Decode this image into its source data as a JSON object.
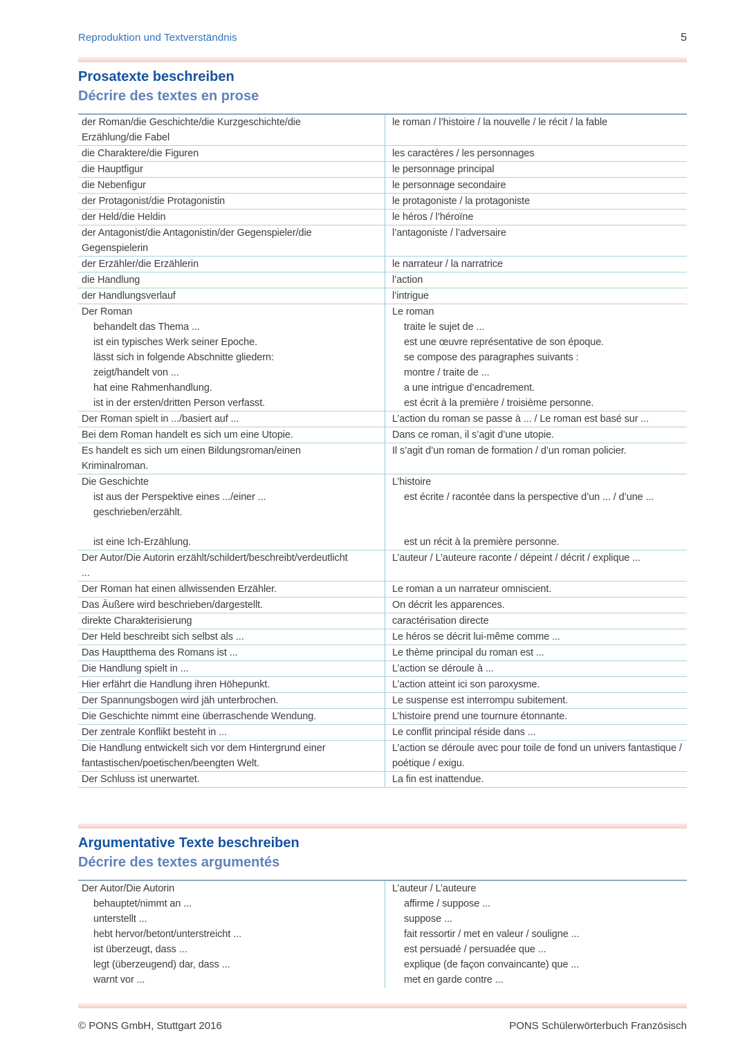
{
  "header": {
    "title": "Reproduktion und Textverständnis",
    "page_number": "5"
  },
  "footer": {
    "copyright": "© PONS GmbH, Stuttgart 2016",
    "edition": "PONS Schülerwörterbuch Französisch"
  },
  "colors": {
    "heading_blue": "#1553a1",
    "subtitle_blue": "#6081be",
    "running_head_blue": "#2e74b9",
    "pink_bar": "#f2c9c3",
    "table_line": "#aed0e0",
    "table_top_border": "#8fa9b8",
    "body_text": "#3d3d3d"
  },
  "sections": [
    {
      "title_de": "Prosatexte beschreiben",
      "title_fr": "Décrire des textes en prose",
      "rows": [
        {
          "de": "der Roman/die Geschichte/die Kurzgeschichte/die Erzählung/die Fabel",
          "fr": "le roman / l’histoire / la nouvelle / le récit / la fable"
        },
        {
          "de": "die Charaktere/die Figuren",
          "fr": "les caractères / les personnages"
        },
        {
          "de": "die Hauptfigur",
          "fr": "le personnage principal"
        },
        {
          "de": "die Nebenfigur",
          "fr": "le personnage secondaire"
        },
        {
          "de": "der Protagonist/die Protagonistin",
          "fr": "le protagoniste / la protagoniste"
        },
        {
          "de": "der Held/die Heldin",
          "fr": "le héros / l’héroïne"
        },
        {
          "de": "der Antagonist/die Antagonistin/der Gegenspieler/die Gegenspielerin",
          "fr": "l’antagoniste / l’adversaire"
        },
        {
          "de": "der Erzähler/die Erzählerin",
          "fr": "le narrateur / la narratrice"
        },
        {
          "de": "die Handlung",
          "fr": "l’action"
        },
        {
          "de": "der Handlungsverlauf",
          "fr": "l’intrigue"
        },
        {
          "head": {
            "de": "Der Roman",
            "fr": "Le roman"
          },
          "items": [
            {
              "de": "behandelt das Thema ...",
              "fr": "traite le sujet de ..."
            },
            {
              "de": "ist ein typisches Werk seiner Epoche.",
              "fr": "est une œuvre représentative de son époque."
            },
            {
              "de": "lässt sich in folgende Abschnitte gliedern:",
              "fr": "se compose des paragraphes suivants :"
            },
            {
              "de": "zeigt/handelt von ...",
              "fr": "montre / traite de ..."
            },
            {
              "de": "hat eine Rahmenhandlung.",
              "fr": "a une intrigue d’encadrement."
            },
            {
              "de": "ist in der ersten/dritten Person verfasst.",
              "fr": "est écrit à la première / troisième personne."
            }
          ]
        },
        {
          "de": "Der Roman spielt in .../basiert auf ...",
          "fr": "L’action du roman se passe à ... / Le roman est basé sur ..."
        },
        {
          "de": "Bei dem Roman handelt es sich um eine Utopie.",
          "fr": "Dans ce roman, il s’agit d’une utopie."
        },
        {
          "de": "Es handelt es sich um einen Bildungsroman/einen Kriminalroman.",
          "fr": "Il s’agit d’un roman de formation / d’un roman policier."
        },
        {
          "head": {
            "de": "Die Geschichte",
            "fr": "L’histoire"
          },
          "items": [
            {
              "de": "ist aus der Perspektive eines .../einer ... geschrieben/erzählt.",
              "fr": "est écrite / racontée dans la perspective d’un ... / d’une ...",
              "gap_after": true
            },
            {
              "de": "ist eine Ich-Erzählung.",
              "fr": "est un récit à la première personne."
            }
          ]
        },
        {
          "de": "Der Autor/Die Autorin erzählt/schildert/beschreibt/verdeutlicht ...",
          "fr": "L’auteur / L’auteure raconte / dépeint / décrit / explique ..."
        },
        {
          "de": "Der Roman hat einen allwissenden Erzähler.",
          "fr": "Le roman a un narrateur omniscient."
        },
        {
          "de": "Das Äußere wird beschrieben/dargestellt.",
          "fr": "On décrit les apparences."
        },
        {
          "de": "direkte Charakterisierung",
          "fr": "caractérisation directe"
        },
        {
          "de": "Der Held beschreibt sich selbst als ...",
          "fr": "Le héros se décrit lui-même comme ..."
        },
        {
          "de": "Das Hauptthema des Romans ist ...",
          "fr": "Le thème principal du roman est ..."
        },
        {
          "de": "Die Handlung spielt in ...",
          "fr": "L’action se déroule à ..."
        },
        {
          "de": "Hier erfährt die Handlung ihren Höhepunkt.",
          "fr": "L’action atteint ici son paroxysme."
        },
        {
          "de": "Der Spannungsbogen wird jäh unterbrochen.",
          "fr": "Le suspense est interrompu subitement."
        },
        {
          "de": "Die Geschichte nimmt eine überraschende Wendung.",
          "fr": "L’histoire prend une tournure étonnante."
        },
        {
          "de": "Der zentrale Konflikt besteht in ...",
          "fr": "Le conflit principal réside dans ..."
        },
        {
          "de": "Die Handlung entwickelt sich vor dem Hintergrund einer fantastischen/poetischen/beengten Welt.",
          "fr": "L’action se déroule avec pour toile de fond un univers fantastique / poétique / exigu."
        },
        {
          "de": "Der Schluss ist unerwartet.",
          "fr": "La fin est inattendue."
        }
      ]
    },
    {
      "title_de": "Argumentative Texte beschreiben",
      "title_fr": "Décrire des textes argumentés",
      "rows": [
        {
          "head": {
            "de": "Der Autor/Die Autorin",
            "fr": "L’auteur / L’auteure"
          },
          "items": [
            {
              "de": "behauptet/nimmt an ...",
              "fr": "affirme / suppose ..."
            },
            {
              "de": "unterstellt ...",
              "fr": "suppose ..."
            },
            {
              "de": "hebt hervor/betont/unterstreicht ...",
              "fr": "fait ressortir / met en valeur / souligne ..."
            },
            {
              "de": "ist überzeugt, dass ...",
              "fr": "est persuadé / persuadée que ..."
            },
            {
              "de": "legt (überzeugend) dar, dass ...",
              "fr": "explique (de façon convaincante) que ..."
            },
            {
              "de": "warnt vor ...",
              "fr": "met en garde contre ..."
            }
          ]
        }
      ]
    }
  ]
}
